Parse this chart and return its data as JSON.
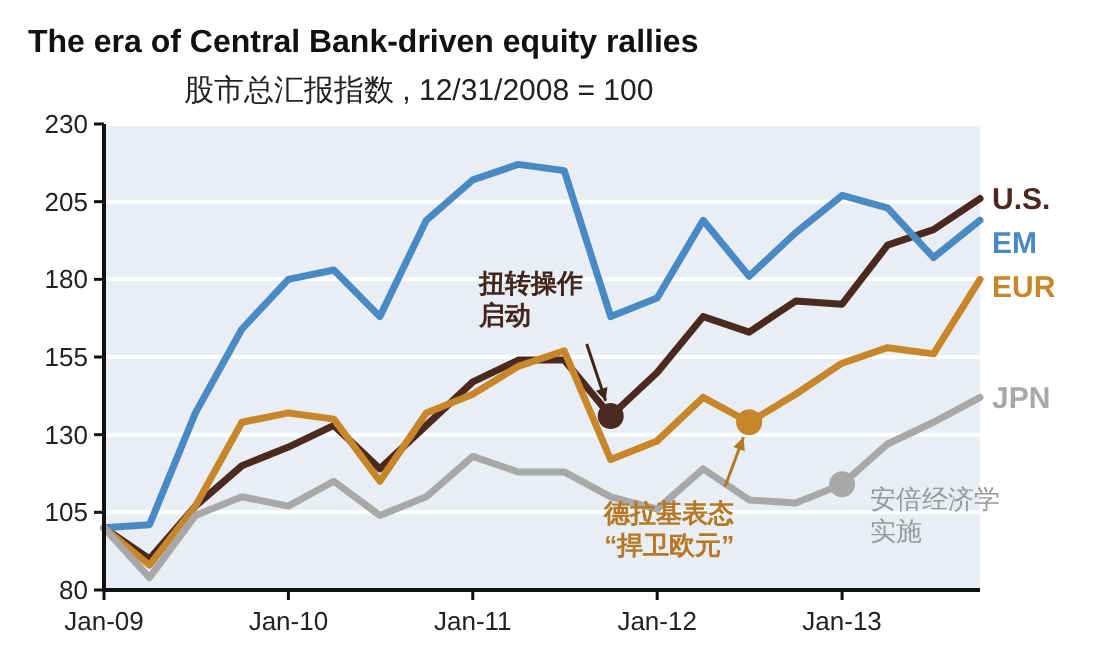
{
  "chart_data": {
    "type": "line",
    "title": "The era of Central  Bank-driven  equity rallies",
    "subtitle": "股市总汇报指数 , 12/31/2008 = 100",
    "x": [
      "2009-01",
      "2009-04",
      "2009-07",
      "2009-10",
      "2010-01",
      "2010-04",
      "2010-07",
      "2010-10",
      "2011-01",
      "2011-04",
      "2011-07",
      "2011-10",
      "2012-01",
      "2012-04",
      "2012-07",
      "2012-10",
      "2013-01",
      "2013-04",
      "2013-07",
      "2013-10"
    ],
    "series": [
      {
        "name": "U.S.",
        "color": "#4a2a1e",
        "values": [
          100,
          90,
          107,
          120,
          126,
          133,
          119,
          133,
          147,
          154,
          154,
          136,
          150,
          168,
          163,
          173,
          172,
          191,
          196,
          206
        ]
      },
      {
        "name": "EM",
        "color": "#4a8ac4",
        "values": [
          100,
          101,
          137,
          164,
          180,
          183,
          168,
          199,
          212,
          217,
          215,
          168,
          174,
          199,
          181,
          195,
          207,
          203,
          187,
          199
        ]
      },
      {
        "name": "EUR",
        "color": "#c8862a",
        "values": [
          100,
          88,
          107,
          134,
          137,
          135,
          115,
          137,
          143,
          152,
          157,
          122,
          128,
          142,
          134,
          143,
          153,
          158,
          156,
          180
        ]
      },
      {
        "name": "JPN",
        "color": "#a8a8a8",
        "values": [
          100,
          84,
          104,
          110,
          107,
          115,
          104,
          110,
          123,
          118,
          118,
          110,
          106,
          119,
          109,
          108,
          114,
          127,
          134,
          142
        ]
      }
    ],
    "xlim": [
      "2009-01",
      "2013-10"
    ],
    "xticks": [
      {
        "value": "2009-01",
        "label": "Jan-09"
      },
      {
        "value": "2010-01",
        "label": "Jan-10"
      },
      {
        "value": "2011-01",
        "label": "Jan-11"
      },
      {
        "value": "2012-01",
        "label": "Jan-12"
      },
      {
        "value": "2013-01",
        "label": "Jan-13"
      }
    ],
    "ylim": [
      80,
      230
    ],
    "yticks": [
      80,
      105,
      130,
      155,
      180,
      205,
      230
    ],
    "grid": "y",
    "legend": false,
    "annotations": [
      {
        "text": "扭转操作启动",
        "x": "2011-10",
        "y": 136
      },
      {
        "text": "德拉基表态“捍卫欧元”",
        "x": "2012-07",
        "y": 134
      },
      {
        "text": "安倍经济学实施",
        "x": "2013-01",
        "y": 114
      }
    ]
  }
}
